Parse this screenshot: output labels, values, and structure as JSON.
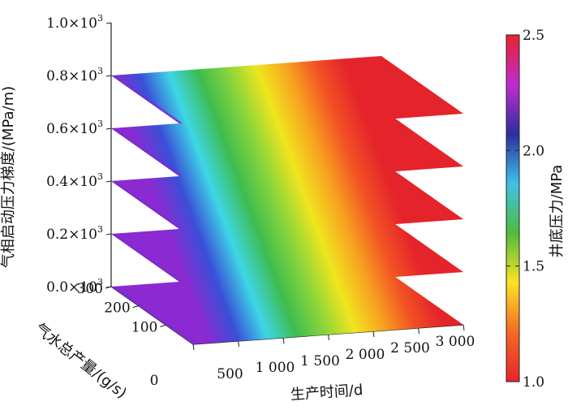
{
  "chart_data": {
    "type": "surface3d-slices",
    "x_axis": {
      "label": "生产时间/d",
      "ticks": [
        "0",
        "500",
        "1 000",
        "1 500",
        "2 000",
        "2 500",
        "3 000"
      ],
      "range": [
        0,
        3000
      ]
    },
    "y_axis": {
      "label": "气水总产量/(g/s)",
      "ticks": [
        "100",
        "200",
        "300"
      ],
      "range": [
        0,
        300
      ]
    },
    "z_axis": {
      "label": "气相启动压力梯度/(MPa/m)",
      "ticks": [
        "0.0×10³",
        "0.2×10³",
        "0.4×10³",
        "0.6×10³",
        "0.8×10³",
        "1.0×10³"
      ],
      "ticks_display": [
        {
          "mantissa": "0.0",
          "sep": "×10",
          "exp": "3"
        },
        {
          "mantissa": "0.2",
          "sep": "×10",
          "exp": "3"
        },
        {
          "mantissa": "0.4",
          "sep": "×10",
          "exp": "3"
        },
        {
          "mantissa": "0.6",
          "sep": "×10",
          "exp": "3"
        },
        {
          "mantissa": "0.8",
          "sep": "×10",
          "exp": "3"
        },
        {
          "mantissa": "1.0",
          "sep": "×10",
          "exp": "3"
        }
      ],
      "range": [
        0,
        1000
      ]
    },
    "slices": [
      0,
      200,
      400,
      600,
      800
    ],
    "colorbar": {
      "label": "井底压力/MPa",
      "ticks": [
        "1.0",
        "1.5",
        "2.0",
        "2.5"
      ],
      "range": [
        1.0,
        2.5
      ],
      "colors": [
        "#e8232b",
        "#f46a22",
        "#fde224",
        "#4fbc3c",
        "#3fc1e9",
        "#2b2f9c",
        "#c02bd0",
        "#e8232b"
      ]
    },
    "surface_gradient": [
      "#8a2ad0",
      "#3a4fd8",
      "#3ed6e6",
      "#3dbd4f",
      "#8ad53a",
      "#f0e51f",
      "#f7a21f",
      "#f25124",
      "#e4232a",
      "#e4232a"
    ]
  }
}
